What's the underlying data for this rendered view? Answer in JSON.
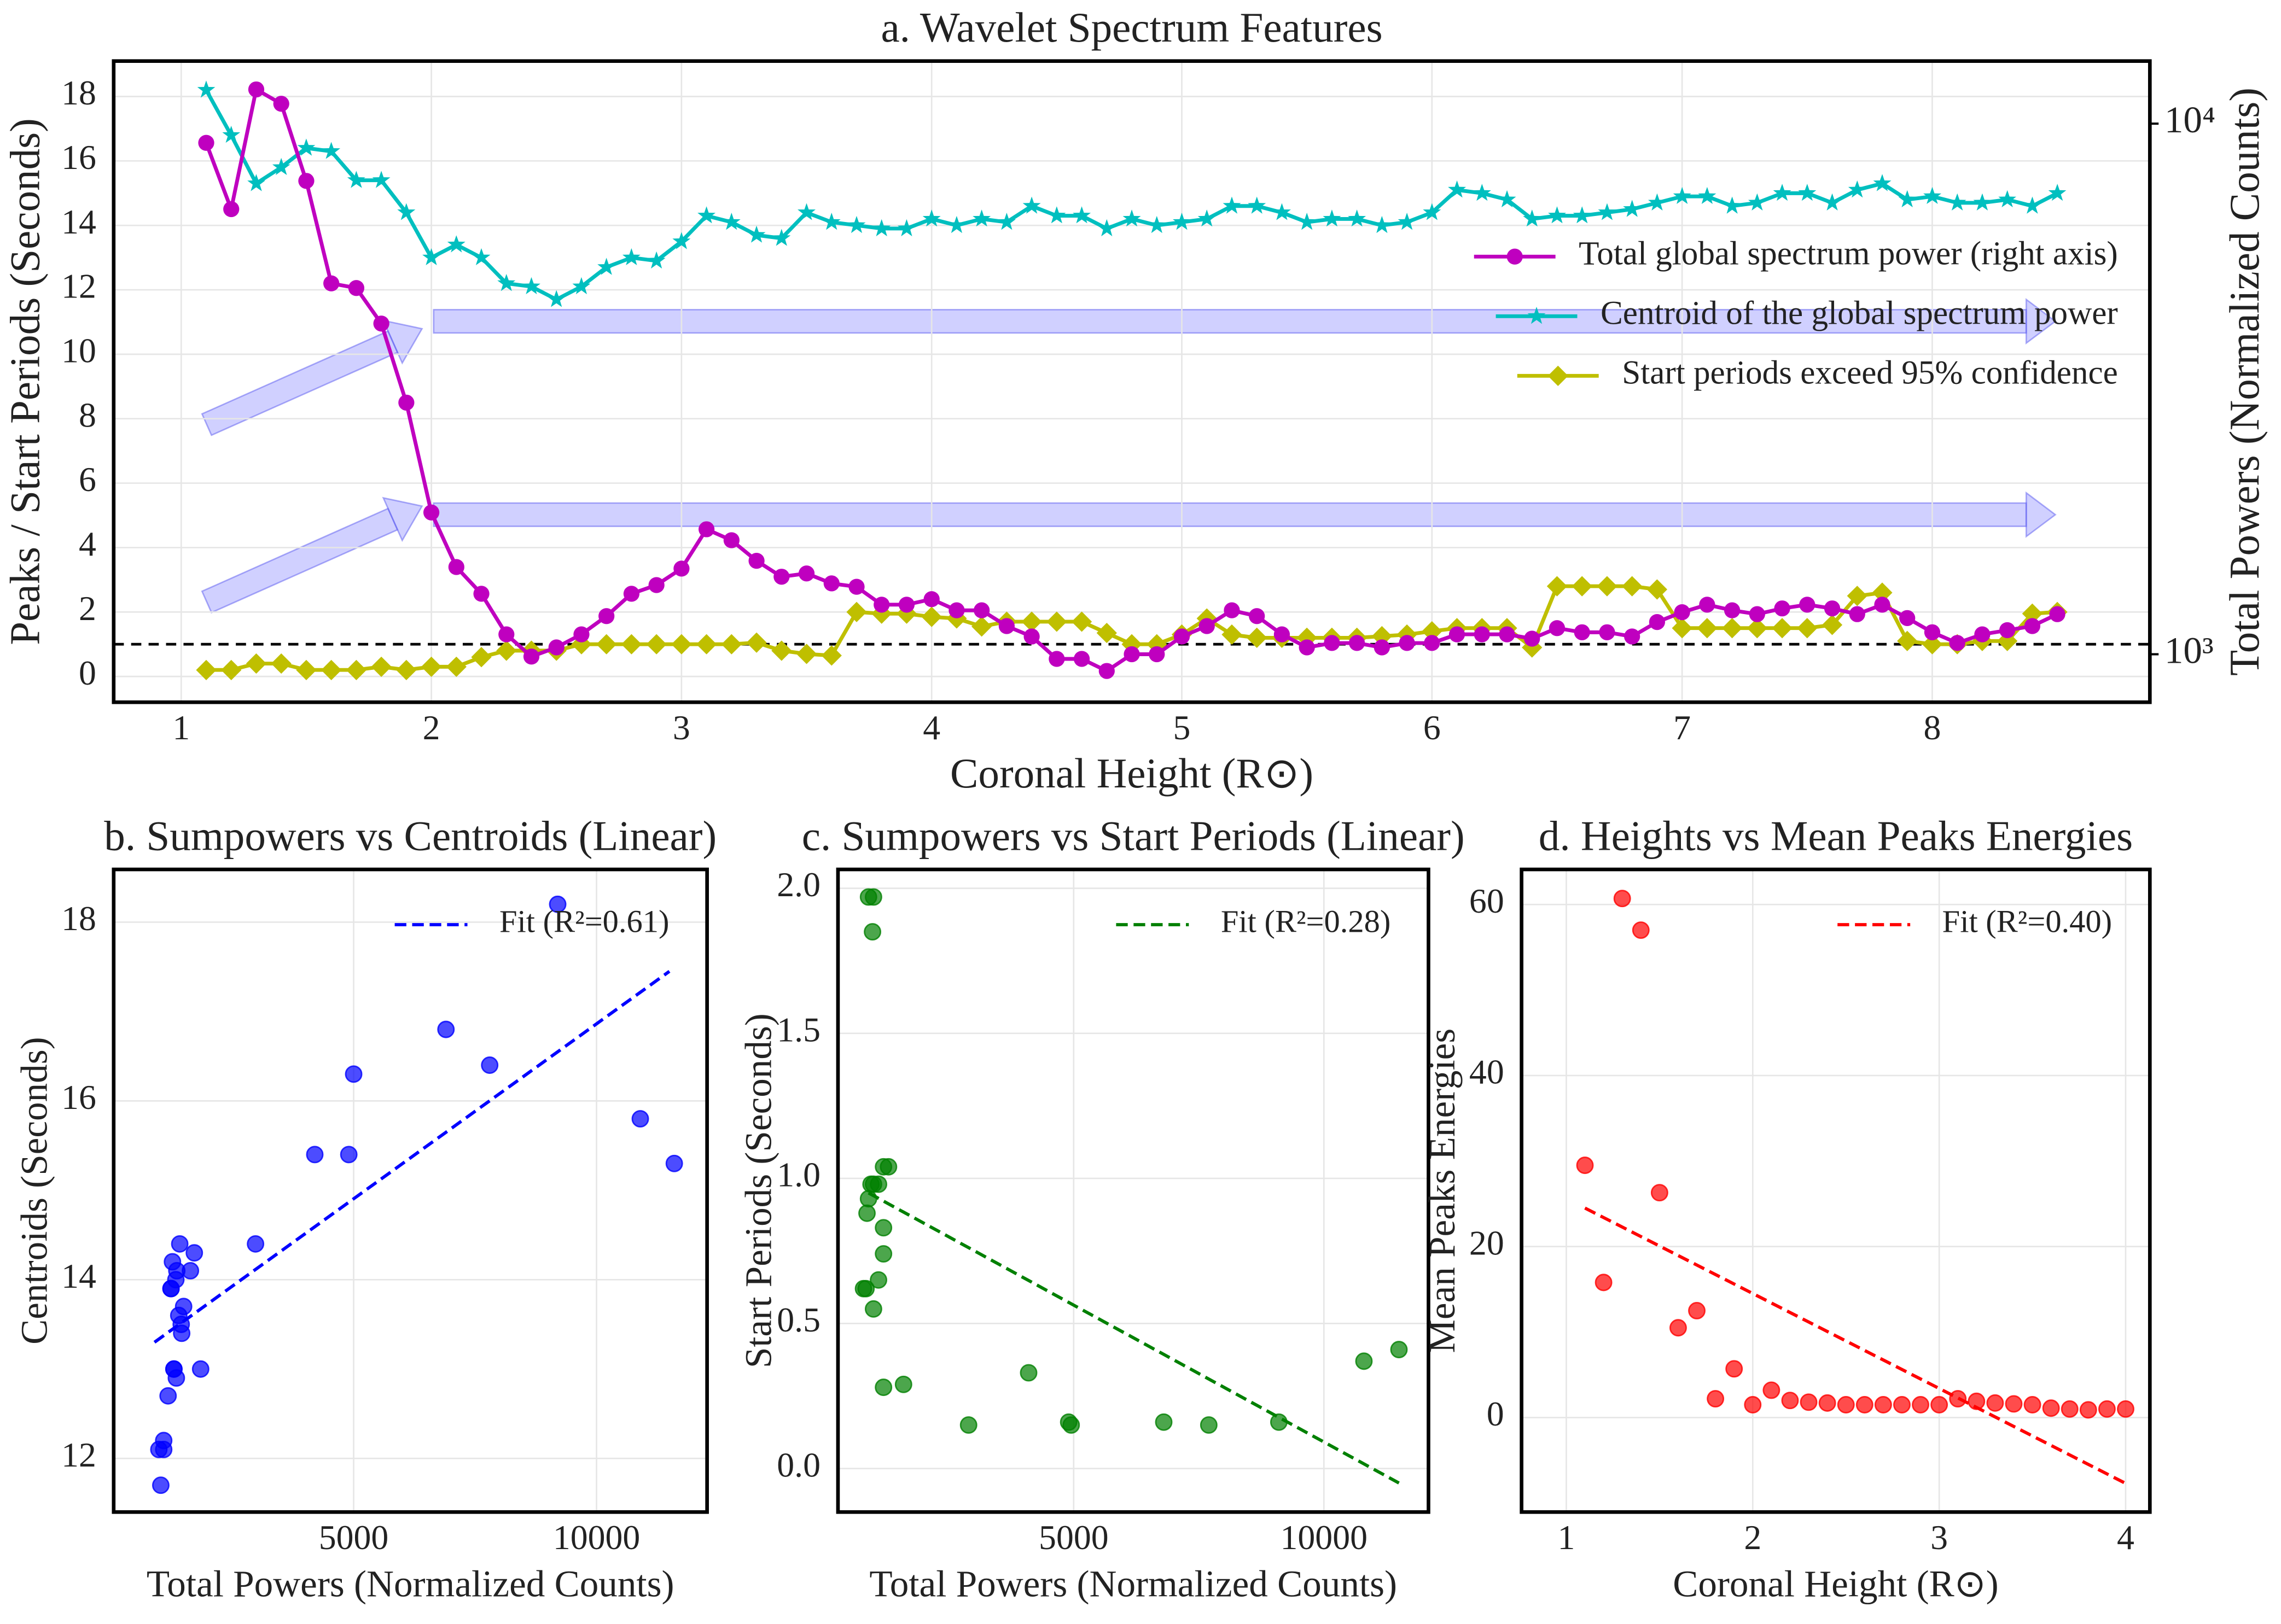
{
  "chart_data": [
    {
      "type": "line",
      "title": "a. Wavelet Spectrum Features",
      "xlabel": "Coronal Height (R⊙)",
      "ylabel": "Peaks / Start Periods (Seconds)",
      "y2label": "Total Powers (Normalized Counts)",
      "ycolor": "#00bfbf",
      "y2color": "#bf00bf",
      "grid": true,
      "legend": "center right",
      "y2scale": "log",
      "xlim": [
        0.73,
        8.87
      ],
      "xticks": [
        1,
        2,
        3,
        4,
        5,
        6,
        7,
        8
      ],
      "ylim": [
        -0.8,
        19.1
      ],
      "yticks": [
        0,
        2,
        4,
        6,
        8,
        10,
        12,
        14,
        16,
        18
      ],
      "y2lim": [
        812,
        13120
      ],
      "y2ticks": [
        {
          "value": 1000,
          "label": "10³"
        },
        {
          "value": 10000,
          "label": "10⁴"
        }
      ],
      "hline": {
        "value": 1,
        "color": "#000000"
      },
      "x": [
        1.1,
        1.2,
        1.3,
        1.4,
        1.5,
        1.6,
        1.7,
        1.8,
        1.9,
        2.0,
        2.1,
        2.2,
        2.3,
        2.4,
        2.5,
        2.6,
        2.7,
        2.8,
        2.9,
        3.0,
        3.1,
        3.2,
        3.3,
        3.4,
        3.5,
        3.6,
        3.7,
        3.8,
        3.9,
        4.0,
        4.1,
        4.2,
        4.3,
        4.4,
        4.5,
        4.6,
        4.7,
        4.8,
        4.9,
        5.0,
        5.1,
        5.2,
        5.3,
        5.4,
        5.5,
        5.6,
        5.7,
        5.8,
        5.9,
        6.0,
        6.1,
        6.2,
        6.3,
        6.4,
        6.5,
        6.6,
        6.7,
        6.8,
        6.9,
        7.0,
        7.1,
        7.2,
        7.3,
        7.4,
        7.5,
        7.6,
        7.7,
        7.8,
        7.9,
        8.0,
        8.1,
        8.2,
        8.3,
        8.4,
        8.5
      ],
      "series": [
        {
          "name": "Total global spectrum power (right axis)",
          "color": "#bf00bf",
          "marker": "circle",
          "axis": "y2",
          "values": [
            9200,
            6900,
            11600,
            10900,
            7800,
            5000,
            4900,
            4200,
            2980,
            1850,
            1460,
            1300,
            1090,
            990,
            1030,
            1090,
            1180,
            1300,
            1350,
            1450,
            1720,
            1640,
            1500,
            1400,
            1420,
            1360,
            1340,
            1240,
            1240,
            1270,
            1210,
            1210,
            1130,
            1080,
            980,
            980,
            930,
            1000,
            1000,
            1080,
            1130,
            1210,
            1180,
            1090,
            1030,
            1050,
            1050,
            1030,
            1050,
            1050,
            1090,
            1090,
            1090,
            1070,
            1120,
            1100,
            1100,
            1080,
            1150,
            1200,
            1240,
            1210,
            1190,
            1220,
            1240,
            1220,
            1190,
            1240,
            1170,
            1100,
            1050,
            1090,
            1110,
            1130,
            1190
          ]
        },
        {
          "name": "Centroid of the global spectrum power",
          "color": "#00bfbf",
          "marker": "star",
          "values": [
            18.2,
            16.8,
            15.3,
            15.8,
            16.4,
            16.3,
            15.4,
            15.4,
            14.4,
            13.0,
            13.4,
            13.0,
            12.2,
            12.1,
            11.7,
            12.1,
            12.7,
            13.0,
            12.9,
            13.5,
            14.3,
            14.1,
            13.7,
            13.6,
            14.4,
            14.1,
            14.0,
            13.9,
            13.9,
            14.2,
            14.0,
            14.2,
            14.1,
            14.6,
            14.3,
            14.3,
            13.9,
            14.2,
            14.0,
            14.1,
            14.2,
            14.6,
            14.6,
            14.4,
            14.1,
            14.2,
            14.2,
            14.0,
            14.1,
            14.4,
            15.1,
            15.0,
            14.8,
            14.2,
            14.3,
            14.3,
            14.4,
            14.5,
            14.7,
            14.9,
            14.9,
            14.6,
            14.7,
            15.0,
            15.0,
            14.7,
            15.1,
            15.3,
            14.8,
            14.9,
            14.7,
            14.7,
            14.8,
            14.6,
            15.0
          ]
        },
        {
          "name": "Start periods exceed 95% confidence",
          "color": "#bfbf00",
          "marker": "diamond",
          "values": [
            0.2,
            0.2,
            0.4,
            0.4,
            0.2,
            0.2,
            0.2,
            0.3,
            0.2,
            0.3,
            0.3,
            0.6,
            0.8,
            0.8,
            0.8,
            1.0,
            1.0,
            1.0,
            1.0,
            1.0,
            1.0,
            1.0,
            1.05,
            0.8,
            0.7,
            0.65,
            2.0,
            1.95,
            1.95,
            1.85,
            1.8,
            1.55,
            1.7,
            1.7,
            1.7,
            1.7,
            1.35,
            1.0,
            1.0,
            1.3,
            1.8,
            1.3,
            1.2,
            1.2,
            1.2,
            1.2,
            1.2,
            1.25,
            1.3,
            1.4,
            1.5,
            1.5,
            1.5,
            0.9,
            2.8,
            2.8,
            2.8,
            2.8,
            2.7,
            1.5,
            1.5,
            1.5,
            1.5,
            1.5,
            1.5,
            1.6,
            2.5,
            2.6,
            1.1,
            1.0,
            1.0,
            1.1,
            1.1,
            1.95,
            2.0
          ]
        }
      ]
    },
    {
      "type": "scatter",
      "title": "b. Sumpowers vs Centroids (Linear)",
      "xlabel": "Total Powers (Normalized Counts)",
      "ylabel": "Centroids (Seconds)",
      "grid": true,
      "legend": "upper right",
      "color": "#0000ff",
      "xlim": [
        60,
        12275
      ],
      "xticks": [
        5000,
        10000
      ],
      "ylim": [
        11.4,
        18.59
      ],
      "yticks": [
        12,
        14,
        16,
        18
      ],
      "x": [
        9200,
        6900,
        11600,
        10900,
        7800,
        5000,
        4900,
        4200,
        2980,
        1850,
        1460,
        1300,
        1090,
        990,
        1030,
        1090,
        1180,
        1300,
        1350,
        1450,
        1720,
        1640,
        1500,
        1400,
        1420,
        1360,
        1340,
        1240,
        1240,
        1270
      ],
      "y": [
        18.2,
        16.8,
        15.3,
        15.8,
        16.4,
        16.3,
        15.4,
        15.4,
        14.4,
        13.0,
        13.4,
        13.0,
        12.2,
        12.1,
        11.7,
        12.1,
        12.7,
        13.0,
        12.9,
        13.5,
        14.3,
        14.1,
        13.7,
        13.6,
        14.4,
        14.1,
        14.0,
        13.9,
        13.9,
        14.2
      ],
      "fit": {
        "name": "Fit (R²=0.61)",
        "color": "#0000ff",
        "x": [
          900,
          11500
        ],
        "y": [
          13.3,
          17.45
        ]
      }
    },
    {
      "type": "scatter",
      "title": "c. Sumpowers vs Start Periods (Linear)",
      "xlabel": "Total Powers (Normalized Counts)",
      "ylabel": "Start Periods (Seconds)",
      "grid": true,
      "legend": "upper right",
      "color": "#008000",
      "xlim": [
        290,
        12090
      ],
      "xticks": [
        5000,
        10000
      ],
      "ylim": [
        -0.15,
        2.065
      ],
      "yticks": [
        {
          "value": 0,
          "label": "0.0"
        },
        0.5,
        {
          "value": 1,
          "label": "1.0"
        },
        1.5,
        {
          "value": 2,
          "label": "2.0"
        }
      ],
      "x": [
        900,
        1000,
        980,
        800,
        850,
        870,
        900,
        950,
        1000,
        1100,
        1200,
        1300,
        1100,
        1000,
        1200,
        1200,
        1200,
        1600,
        2900,
        4100,
        4900,
        4950,
        6800,
        7700,
        9100,
        10800,
        11500
      ],
      "y": [
        1.97,
        1.97,
        1.85,
        0.62,
        0.62,
        0.88,
        0.93,
        0.98,
        0.98,
        0.98,
        1.04,
        1.04,
        0.65,
        0.55,
        0.74,
        0.83,
        0.28,
        0.29,
        0.15,
        0.33,
        0.16,
        0.15,
        0.16,
        0.15,
        0.16,
        0.37,
        0.41
      ],
      "fit": {
        "name": "Fit (R²=0.28)",
        "color": "#008000",
        "x": [
          900,
          11500
        ],
        "y": [
          0.95,
          -0.05
        ]
      }
    },
    {
      "type": "scatter",
      "title": "d. Heights vs Mean Peaks Energies",
      "xlabel": "Coronal Height (R⊙)",
      "ylabel": "Mean Peaks Energies",
      "grid": true,
      "legend": "upper right",
      "color": "#ff0000",
      "xlim": [
        0.76,
        4.13
      ],
      "xticks": [
        1,
        2,
        3,
        4
      ],
      "ylim": [
        -11.05,
        64.1
      ],
      "yticks": [
        0,
        20,
        40,
        60
      ],
      "x": [
        1.1,
        1.2,
        1.3,
        1.4,
        1.5,
        1.6,
        1.7,
        1.8,
        1.9,
        2.0,
        2.1,
        2.2,
        2.3,
        2.4,
        2.5,
        2.6,
        2.7,
        2.8,
        2.9,
        3.0,
        3.1,
        3.2,
        3.3,
        3.4,
        3.5,
        3.6,
        3.7,
        3.8,
        3.9,
        4.0
      ],
      "y": [
        29.5,
        15.8,
        60.7,
        57.0,
        26.3,
        10.5,
        12.5,
        2.2,
        5.7,
        1.5,
        3.2,
        2.0,
        1.8,
        1.7,
        1.5,
        1.5,
        1.5,
        1.5,
        1.5,
        1.5,
        2.2,
        1.9,
        1.7,
        1.6,
        1.5,
        1.1,
        1.0,
        0.9,
        1.0,
        1.0
      ],
      "fit": {
        "name": "Fit (R²=0.40)",
        "color": "#ff0000",
        "x": [
          1.1,
          4.0
        ],
        "y": [
          24.5,
          -7.7
        ]
      }
    }
  ]
}
